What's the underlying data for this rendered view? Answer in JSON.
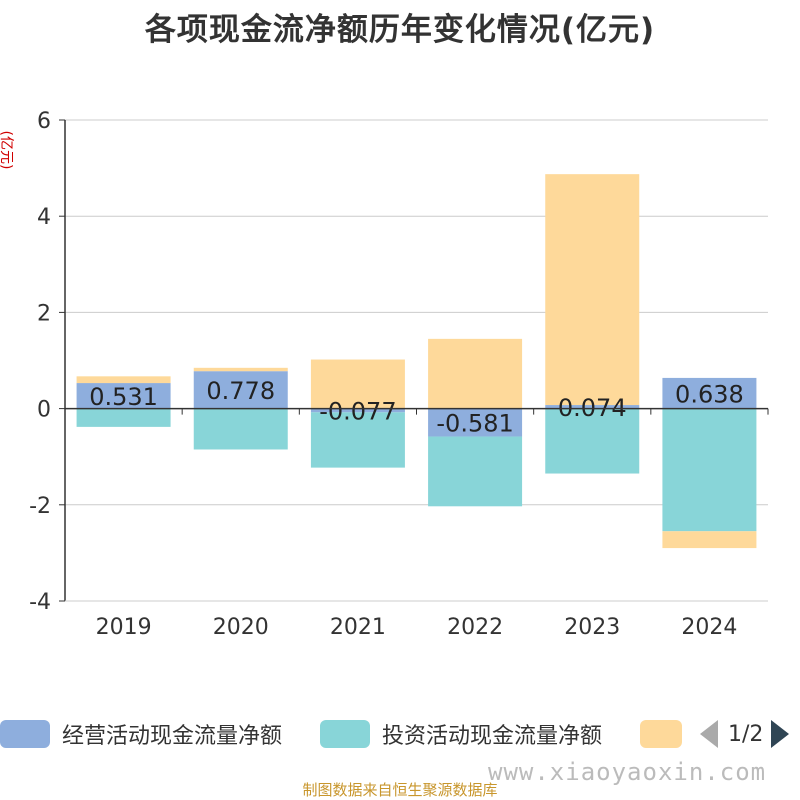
{
  "chart_data": {
    "type": "bar",
    "title": "各项现金流净额历年变化情况(亿元)",
    "ylabel": "(亿元)",
    "ylim": [
      -4,
      6
    ],
    "yticks": [
      -4,
      -2,
      0,
      2,
      4,
      6
    ],
    "categories": [
      "2019",
      "2020",
      "2021",
      "2022",
      "2023",
      "2024"
    ],
    "stacked": true,
    "series": [
      {
        "name": "经营活动现金流量净额",
        "color": "#8eaedd",
        "values": [
          0.531,
          0.778,
          -0.077,
          -0.581,
          0.074,
          0.638
        ],
        "labels": [
          "0.531",
          "0.778",
          "-0.077",
          "-0.581",
          "0.074",
          "0.638"
        ]
      },
      {
        "name": "投资活动现金流量净额",
        "color": "#88d5d8",
        "values": [
          -0.38,
          -0.85,
          -1.15,
          -1.45,
          -1.35,
          -2.55
        ]
      },
      {
        "name": "",
        "color": "#fed99a",
        "values": [
          0.14,
          0.07,
          1.02,
          1.45,
          4.8,
          -0.35
        ]
      }
    ],
    "grid": true,
    "legend_position": "bottom"
  },
  "legend": {
    "page": "1/2"
  },
  "source": "制图数据来自恒生聚源数据库",
  "watermark": "www.xiaoyaoxin.com"
}
